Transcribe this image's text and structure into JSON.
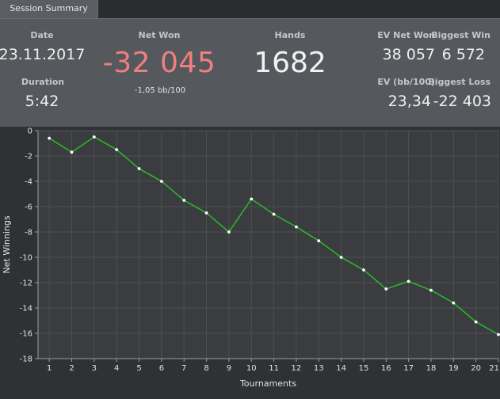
{
  "window": {
    "tab_label": "Session Summary"
  },
  "summary": {
    "date_label": "Date",
    "date_value": "23.11.2017",
    "duration_label": "Duration",
    "duration_value": "5:42",
    "net_won_label": "Net Won",
    "net_won_value": "-32 045",
    "bb_per_100": "-1,05 bb/100",
    "hands_label": "Hands",
    "hands_value": "1682",
    "ev_net_won_label": "EV Net Won",
    "ev_net_won_value": "38 057",
    "biggest_win_label": "Biggest Win",
    "biggest_win_value": "6 572",
    "ev_bb_label": "EV (bb/100)",
    "ev_bb_value": "23,34",
    "biggest_loss_label": "Biggest Loss",
    "biggest_loss_value": "-22 403"
  },
  "colors": {
    "net_won": "#f07f7f",
    "line": "#2bb32b",
    "point": "#ffffff"
  },
  "chart_data": {
    "type": "line",
    "xlabel": "Tournaments",
    "ylabel": "Net Winnings",
    "x": [
      1,
      2,
      3,
      4,
      5,
      6,
      7,
      8,
      9,
      10,
      11,
      12,
      13,
      14,
      15,
      16,
      17,
      18,
      19,
      20,
      21
    ],
    "series": [
      {
        "values": [
          -0.6,
          -1.7,
          -0.5,
          -1.5,
          -3.0,
          -4.0,
          -5.5,
          -6.5,
          -8.0,
          -5.4,
          -6.6,
          -7.6,
          -8.7,
          -10.0,
          -11.0,
          -12.5,
          -11.9,
          -12.6,
          -13.6,
          -15.1,
          -16.1
        ]
      }
    ],
    "xticks": [
      1,
      2,
      3,
      4,
      5,
      6,
      7,
      8,
      9,
      10,
      11,
      12,
      13,
      14,
      15,
      16,
      17,
      18,
      19,
      20,
      21
    ],
    "yticks": [
      0,
      -2,
      -4,
      -6,
      -8,
      -10,
      -12,
      -14,
      -16,
      -18
    ],
    "xlim": [
      0.5,
      21
    ],
    "ylim": [
      -18,
      0
    ],
    "grid": true,
    "legend": "none"
  }
}
